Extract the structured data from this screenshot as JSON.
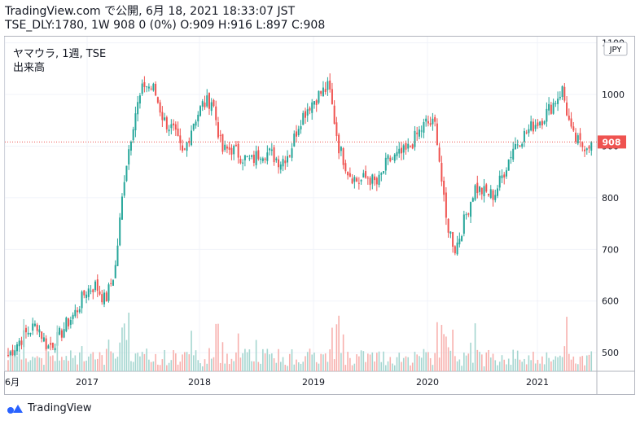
{
  "header": {
    "line1": "TradingView.com で公開, 6月 18, 2021 18:33:07 JST",
    "line2": "TSE_DLY:1780, 1W 908 0 (0%) O:909 H:916 L:897 C:908"
  },
  "legend": {
    "symbol": "ヤマウラ, 1週, TSE",
    "volume_label": "出来高"
  },
  "currency_badge": "JPY",
  "last_price_badge": "908",
  "branding": "TradingView",
  "colors": {
    "up": "#26a69a",
    "down": "#ef5350",
    "up_vol": "#a5d6d0",
    "down_vol": "#f7b0ad",
    "grid": "#f0f3fa",
    "axis": "#131722"
  },
  "chart_data": {
    "type": "candlestick",
    "x_tick_labels": [
      "6月",
      "2017",
      "2018",
      "2019",
      "2020",
      "2021"
    ],
    "y_tick_labels": [
      "1100",
      "1000",
      "900",
      "800",
      "700",
      "600",
      "500"
    ],
    "ylim": [
      464,
      1112
    ],
    "last_price": 908,
    "series_weekly_close_approx": [
      [
        "2016-06",
        495
      ],
      [
        "2016-07",
        520
      ],
      [
        "2016-08",
        540
      ],
      [
        "2016-09",
        555
      ],
      [
        "2016-10",
        510
      ],
      [
        "2016-11",
        525
      ],
      [
        "2016-12",
        555
      ],
      [
        "2017-01",
        580
      ],
      [
        "2017-02",
        620
      ],
      [
        "2017-03",
        630
      ],
      [
        "2017-04",
        600
      ],
      [
        "2017-05",
        660
      ],
      [
        "2017-06",
        850
      ],
      [
        "2017-07",
        960
      ],
      [
        "2017-08",
        1020
      ],
      [
        "2017-09",
        1010
      ],
      [
        "2017-10",
        950
      ],
      [
        "2017-11",
        930
      ],
      [
        "2017-12",
        880
      ],
      [
        "2018-01",
        945
      ],
      [
        "2018-02",
        980
      ],
      [
        "2018-03",
        990
      ],
      [
        "2018-04",
        890
      ],
      [
        "2018-05",
        895
      ],
      [
        "2018-06",
        880
      ],
      [
        "2018-07",
        870
      ],
      [
        "2018-08",
        890
      ],
      [
        "2018-09",
        885
      ],
      [
        "2018-10",
        870
      ],
      [
        "2018-11",
        890
      ],
      [
        "2018-12",
        950
      ],
      [
        "2019-01",
        980
      ],
      [
        "2019-02",
        1000
      ],
      [
        "2019-03",
        1015
      ],
      [
        "2019-04",
        900
      ],
      [
        "2019-05",
        850
      ],
      [
        "2019-06",
        830
      ],
      [
        "2019-07",
        840
      ],
      [
        "2019-08",
        825
      ],
      [
        "2019-09",
        870
      ],
      [
        "2019-10",
        880
      ],
      [
        "2019-11",
        890
      ],
      [
        "2019-12",
        920
      ],
      [
        "2020-01",
        945
      ],
      [
        "2020-02",
        940
      ],
      [
        "2020-03",
        760
      ],
      [
        "2020-04",
        700
      ],
      [
        "2020-05",
        760
      ],
      [
        "2020-06",
        820
      ],
      [
        "2020-07",
        810
      ],
      [
        "2020-08",
        805
      ],
      [
        "2020-09",
        850
      ],
      [
        "2020-10",
        900
      ],
      [
        "2020-11",
        920
      ],
      [
        "2020-12",
        940
      ],
      [
        "2021-01",
        955
      ],
      [
        "2021-02",
        980
      ],
      [
        "2021-03",
        1010
      ],
      [
        "2021-04",
        920
      ],
      [
        "2021-05",
        900
      ],
      [
        "2021-06",
        908
      ]
    ]
  }
}
